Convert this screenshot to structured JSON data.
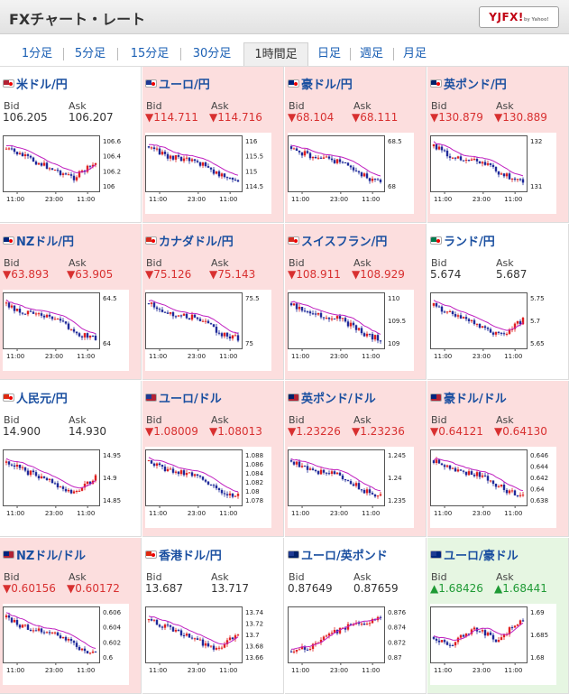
{
  "header": {
    "title": "FXチャート・レート",
    "logo_main": "YJFX!",
    "logo_sub": "by Yahoo!"
  },
  "tabs": [
    {
      "label": "1分足",
      "active": false
    },
    {
      "label": "5分足",
      "active": false
    },
    {
      "label": "15分足",
      "active": false
    },
    {
      "label": "30分足",
      "active": false
    },
    {
      "label": "1時間足",
      "active": true
    },
    {
      "label": "日足",
      "active": false
    },
    {
      "label": "週足",
      "active": false
    },
    {
      "label": "月足",
      "active": false
    }
  ],
  "bid_label": "Bid",
  "ask_label": "Ask",
  "x_ticks": [
    "11:00",
    "23:00",
    "11:00"
  ],
  "colors": {
    "down_bg": "#fcdede",
    "up_bg": "#e6f6e2",
    "down_text": "#d83030",
    "up_text": "#1f9a35",
    "link": "#1a4fa0"
  },
  "pairs": [
    {
      "name": "米ドル/円",
      "flag": "flag-us-jp",
      "state": "flat",
      "bid": "106.205",
      "ask": "106.207",
      "y_ticks": [
        "106.6",
        "106.4",
        "106.2",
        "106"
      ],
      "trend": "down-then-up"
    },
    {
      "name": "ユーロ/円",
      "flag": "flag-eu-jp",
      "state": "down",
      "bid": "▼114.711",
      "ask": "▼114.716",
      "y_ticks": [
        "116",
        "115.5",
        "115",
        "114.5"
      ],
      "trend": "down"
    },
    {
      "name": "豪ドル/円",
      "flag": "flag-au-jp",
      "state": "down",
      "bid": "▼68.104",
      "ask": "▼68.111",
      "y_ticks": [
        "68.5",
        "68"
      ],
      "trend": "down"
    },
    {
      "name": "英ポンド/円",
      "flag": "flag-gb-jp",
      "state": "down",
      "bid": "▼130.879",
      "ask": "▼130.889",
      "y_ticks": [
        "132",
        "131"
      ],
      "trend": "down"
    },
    {
      "name": "NZドル/円",
      "flag": "flag-nz-jp",
      "state": "down",
      "bid": "▼63.893",
      "ask": "▼63.905",
      "y_ticks": [
        "64.5",
        "64"
      ],
      "trend": "down"
    },
    {
      "name": "カナダドル/円",
      "flag": "flag-ca-jp",
      "state": "down",
      "bid": "▼75.126",
      "ask": "▼75.143",
      "y_ticks": [
        "75.5",
        "75"
      ],
      "trend": "down"
    },
    {
      "name": "スイスフラン/円",
      "flag": "flag-ch-jp",
      "state": "down",
      "bid": "▼108.911",
      "ask": "▼108.929",
      "y_ticks": [
        "110",
        "109.5",
        "109"
      ],
      "trend": "down"
    },
    {
      "name": "ランド/円",
      "flag": "flag-za-jp",
      "state": "flat",
      "bid": "5.674",
      "ask": "5.687",
      "y_ticks": [
        "5.75",
        "5.7",
        "5.65"
      ],
      "trend": "down-then-up"
    },
    {
      "name": "人民元/円",
      "flag": "flag-cn-jp",
      "state": "flat",
      "bid": "14.900",
      "ask": "14.930",
      "y_ticks": [
        "14.95",
        "14.9",
        "14.85"
      ],
      "trend": "down-then-up"
    },
    {
      "name": "ユーロ/ドル",
      "flag": "flag-eu-us",
      "state": "down",
      "bid": "▼1.08009",
      "ask": "▼1.08013",
      "y_ticks": [
        "1.088",
        "1.086",
        "1.084",
        "1.082",
        "1.08",
        "1.078"
      ],
      "trend": "down"
    },
    {
      "name": "英ポンド/ドル",
      "flag": "flag-gb-us",
      "state": "down",
      "bid": "▼1.23226",
      "ask": "▼1.23236",
      "y_ticks": [
        "1.245",
        "1.24",
        "1.235"
      ],
      "trend": "down"
    },
    {
      "name": "豪ドル/ドル",
      "flag": "flag-au-us",
      "state": "down",
      "bid": "▼0.64121",
      "ask": "▼0.64130",
      "y_ticks": [
        "0.646",
        "0.644",
        "0.642",
        "0.64",
        "0.638"
      ],
      "trend": "down"
    },
    {
      "name": "NZドル/ドル",
      "flag": "flag-nz-us",
      "state": "down",
      "bid": "▼0.60156",
      "ask": "▼0.60172",
      "y_ticks": [
        "0.606",
        "0.604",
        "0.602",
        "0.6"
      ],
      "trend": "down"
    },
    {
      "name": "香港ドル/円",
      "flag": "flag-hk-jp",
      "state": "flat",
      "bid": "13.687",
      "ask": "13.717",
      "y_ticks": [
        "13.74",
        "13.72",
        "13.7",
        "13.68",
        "13.66"
      ],
      "trend": "down-then-up"
    },
    {
      "name": "ユーロ/英ポンド",
      "flag": "flag-eu-gb",
      "state": "flat",
      "bid": "0.87649",
      "ask": "0.87659",
      "y_ticks": [
        "0.876",
        "0.874",
        "0.872",
        "0.87"
      ],
      "trend": "up"
    },
    {
      "name": "ユーロ/豪ドル",
      "flag": "flag-eu-au",
      "state": "up",
      "bid": "▲1.68426",
      "ask": "▲1.68441",
      "y_ticks": [
        "1.69",
        "1.685",
        "1.68"
      ],
      "trend": "flat-up"
    }
  ]
}
